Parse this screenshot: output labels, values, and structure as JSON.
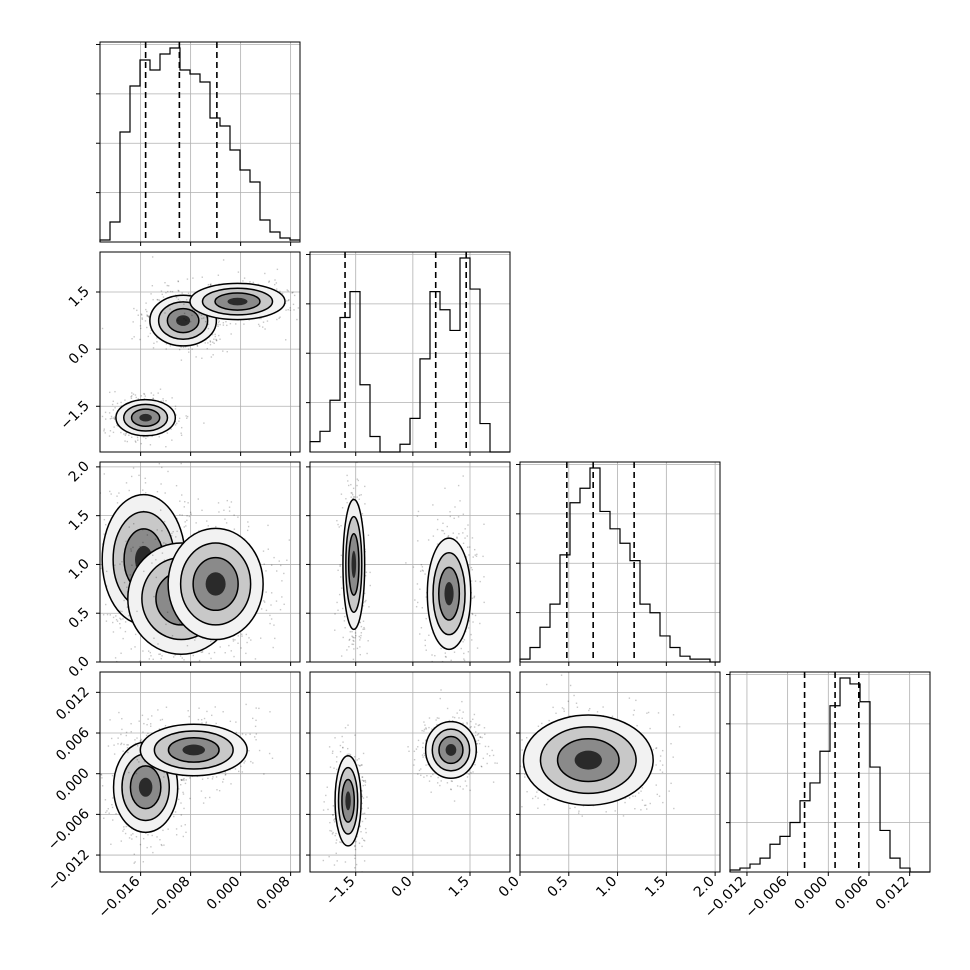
{
  "chart_data": {
    "type": "corner",
    "grid": true,
    "parameters": [
      {
        "range": [
          -0.0225,
          0.0095
        ],
        "ticks": [
          -0.016,
          -0.008,
          0.0,
          0.008
        ],
        "tick_labels": [
          "−0.016",
          "−0.008",
          "0.000",
          "0.008"
        ]
      },
      {
        "range": [
          -2.7,
          2.55
        ],
        "ticks": [
          -1.5,
          0.0,
          1.5
        ],
        "tick_labels": [
          "−1.5",
          "0.0",
          "1.5"
        ]
      },
      {
        "range": [
          0.0,
          2.05
        ],
        "ticks": [
          0.0,
          0.5,
          1.0,
          1.5,
          2.0
        ],
        "tick_labels": [
          "0.0",
          "0.5",
          "1.0",
          "1.5",
          "2.0"
        ]
      },
      {
        "range": [
          -0.0145,
          0.015
        ],
        "ticks": [
          -0.012,
          -0.006,
          0.0,
          0.006,
          0.012
        ],
        "tick_labels": [
          "−0.012",
          "−0.006",
          "0.000",
          "0.006",
          "0.012"
        ]
      }
    ],
    "histograms": [
      {
        "param": 0,
        "quantiles": [
          -0.0152,
          -0.0098,
          -0.0038
        ],
        "bins": [
          -0.0225,
          -0.0209,
          -0.0193,
          -0.0177,
          -0.0161,
          -0.0145,
          -0.0129,
          -0.0113,
          -0.0097,
          -0.0081,
          -0.0065,
          -0.0049,
          -0.0033,
          -0.0017,
          -0.0001,
          0.0015,
          0.0031,
          0.0047,
          0.0063,
          0.0079,
          0.0095
        ],
        "counts": [
          1,
          10,
          55,
          78,
          91,
          86,
          94,
          97,
          86,
          84,
          80,
          62,
          58,
          46,
          36,
          30,
          11,
          5,
          2,
          1
        ]
      },
      {
        "param": 1,
        "quantiles": [
          -1.78,
          0.6,
          1.4
        ],
        "bins": [
          -2.7,
          -2.4375,
          -2.175,
          -1.9125,
          -1.65,
          -1.3875,
          -1.125,
          -0.8625,
          -0.6,
          -0.3375,
          -0.075,
          0.1875,
          0.45,
          0.7125,
          0.975,
          1.2375,
          1.5,
          1.7625,
          2.025,
          2.2875,
          2.55
        ],
        "counts": [
          4,
          8,
          20,
          52,
          62,
          26,
          6,
          0,
          0,
          3,
          13,
          36,
          62,
          55,
          47,
          75,
          63,
          11,
          0,
          0
        ]
      },
      {
        "param": 2,
        "quantiles": [
          0.48,
          0.75,
          1.17
        ],
        "bins": [
          0.0,
          0.1025,
          0.205,
          0.3075,
          0.41,
          0.5125,
          0.615,
          0.7175,
          0.82,
          0.9225,
          1.025,
          1.1275,
          1.23,
          1.3325,
          1.435,
          1.5375,
          1.64,
          1.7425,
          1.845,
          1.9475,
          2.05
        ],
        "counts": [
          1,
          5,
          12,
          20,
          37,
          55,
          60,
          67,
          52,
          46,
          41,
          35,
          20,
          17,
          9,
          5,
          2,
          1,
          1,
          0
        ]
      },
      {
        "param": 3,
        "quantiles": [
          -0.0035,
          0.001,
          0.0045
        ],
        "bins": [
          -0.0145,
          -0.01303,
          -0.01155,
          -0.01007,
          -0.0086,
          -0.00713,
          -0.00565,
          -0.00417,
          -0.0027,
          -0.00123,
          0.00025,
          0.00173,
          0.0032,
          0.00468,
          0.00615,
          0.00763,
          0.0091,
          0.01058,
          0.01205,
          0.01353,
          0.015
        ],
        "counts": [
          1,
          2,
          4,
          7,
          14,
          18,
          25,
          36,
          45,
          61,
          84,
          98,
          95,
          86,
          53,
          21,
          7,
          2,
          0,
          0
        ]
      }
    ],
    "scatter_panels": [
      {
        "x_param": 0,
        "y_param": 1,
        "clusters": [
          {
            "cx": -0.0092,
            "cy": 0.75,
            "sx": 0.0028,
            "sy": 0.35
          },
          {
            "cx": -0.0005,
            "cy": 1.25,
            "sx": 0.004,
            "sy": 0.25
          },
          {
            "cx": -0.0152,
            "cy": -1.8,
            "sx": 0.0025,
            "sy": 0.25
          }
        ]
      },
      {
        "x_param": 0,
        "y_param": 2,
        "clusters": [
          {
            "cx": -0.0155,
            "cy": 1.05,
            "sx": 0.0035,
            "sy": 0.35
          },
          {
            "cx": -0.0095,
            "cy": 0.65,
            "sx": 0.0045,
            "sy": 0.3
          },
          {
            "cx": -0.004,
            "cy": 0.8,
            "sx": 0.004,
            "sy": 0.3
          }
        ]
      },
      {
        "x_param": 1,
        "y_param": 2,
        "clusters": [
          {
            "cx": -1.55,
            "cy": 1.0,
            "sx": 0.15,
            "sy": 0.35
          },
          {
            "cx": 0.95,
            "cy": 0.7,
            "sx": 0.3,
            "sy": 0.3
          }
        ]
      },
      {
        "x_param": 0,
        "y_param": 3,
        "clusters": [
          {
            "cx": -0.0152,
            "cy": -0.002,
            "sx": 0.0027,
            "sy": 0.0035
          },
          {
            "cx": -0.0075,
            "cy": 0.0035,
            "sx": 0.0045,
            "sy": 0.002
          }
        ]
      },
      {
        "x_param": 1,
        "y_param": 3,
        "clusters": [
          {
            "cx": -1.7,
            "cy": -0.004,
            "sx": 0.18,
            "sy": 0.0035
          },
          {
            "cx": 1.0,
            "cy": 0.0035,
            "sx": 0.35,
            "sy": 0.0022
          }
        ]
      },
      {
        "x_param": 2,
        "y_param": 3,
        "clusters": [
          {
            "cx": 0.7,
            "cy": 0.002,
            "sx": 0.35,
            "sy": 0.0035
          }
        ]
      }
    ]
  }
}
